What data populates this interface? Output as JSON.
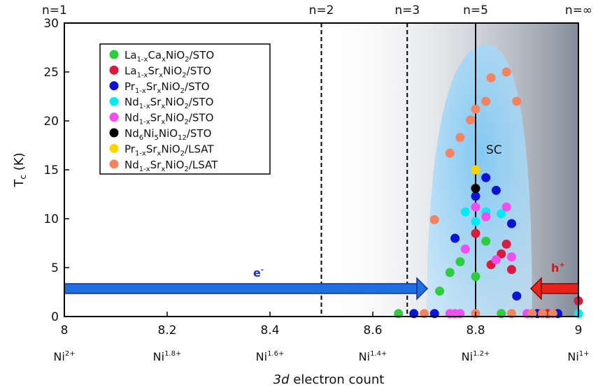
{
  "chart_data": {
    "type": "scatter",
    "title": "",
    "xlabel_italic": "3d",
    "xlabel_rest": " electron count",
    "ylabel_main": "T",
    "ylabel_sub": "c",
    "ylabel_unit": " (K)",
    "xlim": [
      8,
      9
    ],
    "ylim": [
      0,
      30
    ],
    "x_ticks": [
      {
        "value": 8,
        "label": "8"
      },
      {
        "value": 8.2,
        "label": "8.2"
      },
      {
        "value": 8.4,
        "label": "8.4"
      },
      {
        "value": 8.6,
        "label": "8.6"
      },
      {
        "value": 8.8,
        "label": "8.8"
      },
      {
        "value": 9,
        "label": "9"
      }
    ],
    "y_ticks": [
      {
        "value": 0,
        "label": "0"
      },
      {
        "value": 5,
        "label": "5"
      },
      {
        "value": 10,
        "label": "10"
      },
      {
        "value": 15,
        "label": "15"
      },
      {
        "value": 20,
        "label": "20"
      },
      {
        "value": 25,
        "label": "25"
      },
      {
        "value": 30,
        "label": "30"
      }
    ],
    "ni_labels": [
      {
        "value": 8,
        "base": "Ni",
        "sup": "2+"
      },
      {
        "value": 8.2,
        "base": "Ni",
        "sup": "1.8+"
      },
      {
        "value": 8.4,
        "base": "Ni",
        "sup": "1.6+"
      },
      {
        "value": 8.6,
        "base": "Ni",
        "sup": "1.4+"
      },
      {
        "value": 8.8,
        "base": "Ni",
        "sup": "1.2+"
      },
      {
        "value": 9,
        "base": "Ni",
        "sup": "1+"
      }
    ],
    "n_labels": [
      {
        "value": 8,
        "label": "n=1"
      },
      {
        "value": 8.5,
        "label": "n=2"
      },
      {
        "value": 8.667,
        "label": "n=3"
      },
      {
        "value": 8.8,
        "label": "n=5"
      },
      {
        "value": 9,
        "label": "n=∞"
      }
    ],
    "vlines": [
      {
        "x": 8.5,
        "style": "dashed"
      },
      {
        "x": 8.667,
        "style": "dashed"
      },
      {
        "x": 8.8,
        "style": "solid"
      }
    ],
    "sc_dome_label": "SC",
    "electron_label": "e",
    "electron_sup": "-",
    "hole_label": "h",
    "hole_sup": "+",
    "colors": {
      "green": "#2ecc40",
      "red": "#d81b3f",
      "blue": "#0a14d6",
      "cyan": "#00eaf2",
      "magenta": "#f04ef0",
      "black": "#000000",
      "yellow": "#ffd500",
      "orange": "#f4845f",
      "dome": "#8fd0f5",
      "electron_arrow": "#1f6fe0",
      "hole_arrow": "#e8231a"
    },
    "legend_position": "top-left",
    "series": [
      {
        "pre": "La",
        "sub1": "1-x",
        "mid": "Ca",
        "sub2": "x",
        "post": "NiO",
        "sub3": "2",
        "end": "/STO",
        "color": "#2ecc40",
        "points": [
          [
            8.65,
            0.3
          ],
          [
            8.73,
            2.6
          ],
          [
            8.75,
            4.5
          ],
          [
            8.77,
            5.6
          ],
          [
            8.8,
            4.1
          ],
          [
            8.82,
            7.7
          ],
          [
            8.85,
            0.3
          ]
        ]
      },
      {
        "pre": "La",
        "sub1": "1-x",
        "mid": "Sr",
        "sub2": "x",
        "post": "NiO",
        "sub3": "2",
        "end": "/STO",
        "color": "#d81b3f",
        "points": [
          [
            8.8,
            8.5
          ],
          [
            8.83,
            5.3
          ],
          [
            8.85,
            6.4
          ],
          [
            8.86,
            7.4
          ],
          [
            8.87,
            4.8
          ],
          [
            8.94,
            0.3
          ],
          [
            9.0,
            1.6
          ]
        ]
      },
      {
        "pre": "Pr",
        "sub1": "1-x",
        "mid": "Sr",
        "sub2": "x",
        "post": "NiO",
        "sub3": "2",
        "end": "/STO",
        "color": "#0a14d6",
        "points": [
          [
            8.68,
            0.3
          ],
          [
            8.72,
            0.3
          ],
          [
            8.76,
            8.0
          ],
          [
            8.8,
            12.3
          ],
          [
            8.82,
            14.2
          ],
          [
            8.84,
            12.9
          ],
          [
            8.87,
            9.5
          ],
          [
            8.88,
            2.1
          ],
          [
            8.92,
            0.3
          ],
          [
            8.96,
            0.3
          ]
        ]
      },
      {
        "pre": "Nd",
        "sub1": "1-x",
        "mid": "Sr",
        "sub2": "x",
        "post": "NiO",
        "sub3": "2",
        "end": "/STO",
        "color": "#00eaf2",
        "points": [
          [
            8.78,
            10.7
          ],
          [
            8.8,
            9.7
          ],
          [
            8.82,
            10.7
          ],
          [
            8.85,
            10.5
          ],
          [
            9.0,
            0.3
          ]
        ]
      },
      {
        "pre": "Nd",
        "sub1": "1-x",
        "mid": "Sr",
        "sub2": "x",
        "post": "NiO",
        "sub3": "2",
        "end": "/STO",
        "color": "#f04ef0",
        "points": [
          [
            8.75,
            0.3
          ],
          [
            8.76,
            0.3
          ],
          [
            8.77,
            0.3
          ],
          [
            8.78,
            6.9
          ],
          [
            8.8,
            11.2
          ],
          [
            8.82,
            10.2
          ],
          [
            8.84,
            5.8
          ],
          [
            8.86,
            11.2
          ],
          [
            8.87,
            6.1
          ],
          [
            8.9,
            0.3
          ]
        ]
      },
      {
        "pre": "Nd",
        "sub1": "6",
        "mid": "Ni",
        "sub2": "5",
        "post": "NiO",
        "sub3": "12",
        "end": "/STO",
        "color": "#000000",
        "points": [
          [
            8.8,
            13.1
          ]
        ]
      },
      {
        "pre": "Pr",
        "sub1": "1-x",
        "mid": "Sr",
        "sub2": "x",
        "post": "NiO",
        "sub3": "2",
        "end": "/LSAT",
        "color": "#ffd500",
        "points": [
          [
            8.8,
            15.0
          ]
        ]
      },
      {
        "pre": "Nd",
        "sub1": "1-x",
        "mid": "Sr",
        "sub2": "x",
        "post": "NiO",
        "sub3": "2",
        "end": "/LSAT",
        "color": "#f4845f",
        "points": [
          [
            8.7,
            0.3
          ],
          [
            8.72,
            9.9
          ],
          [
            8.75,
            16.7
          ],
          [
            8.77,
            18.3
          ],
          [
            8.79,
            20.1
          ],
          [
            8.8,
            21.2
          ],
          [
            8.82,
            22.0
          ],
          [
            8.83,
            24.4
          ],
          [
            8.86,
            25.0
          ],
          [
            8.88,
            22.0
          ],
          [
            8.8,
            0.3
          ],
          [
            8.87,
            0.3
          ],
          [
            8.91,
            0.3
          ],
          [
            8.93,
            0.3
          ],
          [
            8.95,
            0.3
          ]
        ]
      }
    ]
  }
}
